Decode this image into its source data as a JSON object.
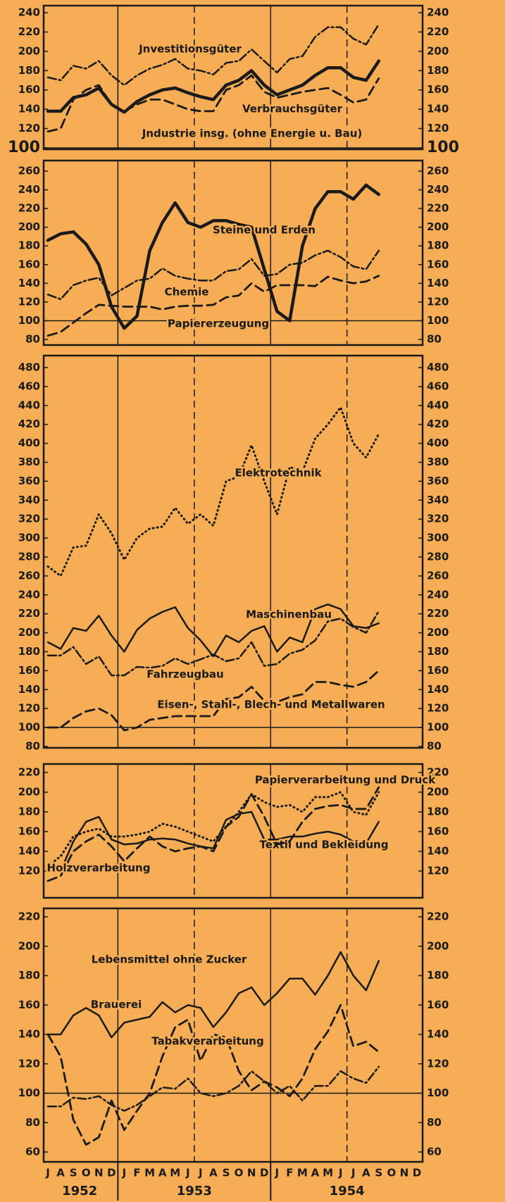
{
  "chart_data": [
    {
      "type": "line",
      "ylim": [
        100,
        240
      ],
      "yticks": [
        100,
        120,
        140,
        160,
        180,
        200,
        220,
        240
      ],
      "reference_line": 100,
      "series": [
        {
          "name": "Jnvestitionsgüter",
          "color": "#1a1a1a",
          "line_style": "dashdot",
          "values": [
            173,
            170,
            185,
            182,
            190,
            175,
            165,
            175,
            182,
            186,
            192,
            182,
            180,
            176,
            188,
            190,
            202,
            190,
            178,
            192,
            195,
            215,
            225,
            225,
            213,
            207,
            228,
            null,
            null,
            null
          ]
        },
        {
          "name": "Verbrauchsgüter",
          "color": "#1a1a1a",
          "line_style": "dashed",
          "values": [
            117,
            120,
            150,
            160,
            165,
            145,
            138,
            145,
            150,
            150,
            145,
            140,
            138,
            138,
            160,
            165,
            175,
            158,
            152,
            155,
            158,
            160,
            162,
            155,
            147,
            150,
            172,
            null,
            null,
            null
          ]
        },
        {
          "name": "Jndustrie insg. (ohne Energie u. Bau)",
          "color": "#1a1a1a",
          "line_style": "thick",
          "values": [
            138,
            138,
            152,
            155,
            162,
            145,
            137,
            148,
            155,
            160,
            162,
            157,
            153,
            150,
            165,
            170,
            180,
            165,
            155,
            160,
            165,
            175,
            183,
            183,
            173,
            170,
            190,
            null,
            null,
            null
          ]
        }
      ]
    },
    {
      "type": "line",
      "ylim": [
        80,
        260
      ],
      "yticks": [
        80,
        100,
        120,
        140,
        160,
        180,
        200,
        220,
        240,
        260
      ],
      "reference_line": 100,
      "series": [
        {
          "name": "Steine und Erden",
          "color": "#1a1a1a",
          "line_style": "thick",
          "values": [
            186,
            193,
            195,
            182,
            160,
            115,
            92,
            105,
            175,
            205,
            226,
            205,
            200,
            207,
            207,
            203,
            200,
            155,
            110,
            100,
            180,
            220,
            238,
            238,
            230,
            245,
            235,
            null,
            null,
            null
          ]
        },
        {
          "name": "Chemie",
          "color": "#1a1a1a",
          "line_style": "dashdot",
          "values": [
            128,
            123,
            138,
            143,
            146,
            127,
            135,
            143,
            145,
            156,
            148,
            145,
            143,
            143,
            153,
            155,
            166,
            148,
            150,
            160,
            162,
            170,
            175,
            168,
            158,
            155,
            175,
            null,
            null,
            null
          ]
        },
        {
          "name": "Papiererzeugung",
          "color": "#1a1a1a",
          "line_style": "dashed",
          "values": [
            84,
            88,
            98,
            108,
            117,
            116,
            115,
            115,
            115,
            112,
            115,
            116,
            116,
            117,
            125,
            127,
            140,
            131,
            138,
            138,
            138,
            137,
            147,
            143,
            140,
            142,
            148,
            null,
            null,
            null
          ]
        }
      ]
    },
    {
      "type": "line",
      "ylim": [
        80,
        480
      ],
      "yticks": [
        80,
        100,
        120,
        140,
        160,
        180,
        200,
        220,
        240,
        260,
        280,
        300,
        320,
        340,
        360,
        380,
        400,
        420,
        440,
        460,
        480
      ],
      "reference_line": 100,
      "series": [
        {
          "name": "Elektrotechnik",
          "color": "#1a1a1a",
          "line_style": "dotted",
          "values": [
            270,
            260,
            290,
            292,
            325,
            305,
            277,
            300,
            310,
            312,
            332,
            315,
            325,
            313,
            360,
            365,
            398,
            360,
            325,
            375,
            370,
            405,
            420,
            438,
            400,
            385,
            410,
            null,
            null,
            null
          ]
        },
        {
          "name": "Maschinenbau",
          "color": "#1a1a1a",
          "line_style": "solid",
          "values": [
            190,
            183,
            205,
            202,
            218,
            197,
            180,
            203,
            215,
            222,
            227,
            205,
            192,
            175,
            197,
            190,
            202,
            207,
            180,
            195,
            190,
            225,
            230,
            225,
            207,
            205,
            210,
            null,
            null,
            null
          ]
        },
        {
          "name": "Fahrzeugbau",
          "color": "#1a1a1a",
          "line_style": "dashdot",
          "values": [
            176,
            176,
            185,
            167,
            175,
            155,
            155,
            164,
            163,
            165,
            173,
            167,
            172,
            177,
            170,
            173,
            190,
            165,
            167,
            178,
            182,
            192,
            212,
            215,
            206,
            200,
            223,
            null,
            null,
            null
          ]
        },
        {
          "name": "Eisen-, Stahl-, Blech- und Metallwaren",
          "color": "#1a1a1a",
          "line_style": "dashed",
          "values": [
            100,
            100,
            110,
            117,
            120,
            113,
            97,
            100,
            108,
            110,
            112,
            112,
            112,
            112,
            130,
            132,
            143,
            128,
            127,
            132,
            135,
            148,
            148,
            145,
            143,
            148,
            160,
            null,
            null,
            null
          ]
        }
      ]
    },
    {
      "type": "line",
      "ylim": [
        100,
        220
      ],
      "yticks": [
        120,
        140,
        160,
        180,
        200,
        220
      ],
      "series": [
        {
          "name": "Papierverarbeitung und Druck",
          "color": "#1a1a1a",
          "line_style": "dotted",
          "values": [
            125,
            135,
            155,
            160,
            163,
            155,
            155,
            157,
            160,
            168,
            165,
            160,
            155,
            150,
            165,
            180,
            198,
            190,
            185,
            187,
            180,
            195,
            195,
            200,
            180,
            177,
            200,
            null,
            null,
            null
          ]
        },
        {
          "name": "Textil und Bekleidung",
          "color": "#1a1a1a",
          "line_style": "solid",
          "values": [
            122,
            120,
            150,
            170,
            175,
            152,
            147,
            148,
            152,
            153,
            152,
            148,
            145,
            143,
            172,
            178,
            180,
            152,
            152,
            155,
            155,
            158,
            160,
            157,
            150,
            148,
            170,
            null,
            null,
            null
          ]
        },
        {
          "name": "Holzverarbeitung",
          "color": "#1a1a1a",
          "line_style": "dashed",
          "values": [
            110,
            115,
            140,
            150,
            157,
            145,
            130,
            143,
            155,
            145,
            140,
            143,
            145,
            140,
            165,
            175,
            198,
            175,
            147,
            150,
            170,
            183,
            186,
            187,
            183,
            183,
            205,
            null,
            null,
            null
          ]
        }
      ]
    },
    {
      "type": "line",
      "ylim": [
        60,
        220
      ],
      "yticks": [
        60,
        80,
        100,
        120,
        140,
        160,
        180,
        200,
        220
      ],
      "reference_line": 100,
      "categories": [
        "J",
        "A",
        "S",
        "O",
        "N",
        "D",
        "J",
        "F",
        "M",
        "A",
        "M",
        "J",
        "J",
        "A",
        "S",
        "O",
        "N",
        "D",
        "J",
        "F",
        "M",
        "A",
        "M",
        "J",
        "J",
        "A",
        "S",
        "O",
        "N",
        "D"
      ],
      "year_labels": [
        "1952",
        "1953",
        "1954"
      ],
      "series": [
        {
          "name": "Lebensmittel ohne Zucker",
          "color": "#1a1a1a",
          "line_style": "solid",
          "values": [
            140,
            140,
            153,
            158,
            153,
            138,
            148,
            150,
            152,
            162,
            155,
            160,
            158,
            145,
            155,
            168,
            172,
            160,
            168,
            178,
            178,
            167,
            180,
            196,
            180,
            170,
            190,
            null,
            null,
            null
          ]
        },
        {
          "name": "Brauerei",
          "color": "#1a1a1a",
          "line_style": "dashed",
          "values": [
            140,
            125,
            82,
            65,
            70,
            95,
            75,
            88,
            100,
            125,
            145,
            150,
            122,
            140,
            138,
            115,
            102,
            108,
            104,
            98,
            110,
            130,
            142,
            160,
            132,
            135,
            128,
            null,
            null,
            null
          ]
        },
        {
          "name": "Tabakverarbeitung",
          "color": "#1a1a1a",
          "line_style": "dashdot",
          "values": [
            91,
            91,
            97,
            96,
            98,
            92,
            88,
            92,
            98,
            104,
            103,
            110,
            100,
            98,
            100,
            105,
            115,
            108,
            100,
            105,
            95,
            105,
            105,
            115,
            110,
            107,
            118,
            null,
            null,
            null
          ]
        }
      ]
    }
  ]
}
